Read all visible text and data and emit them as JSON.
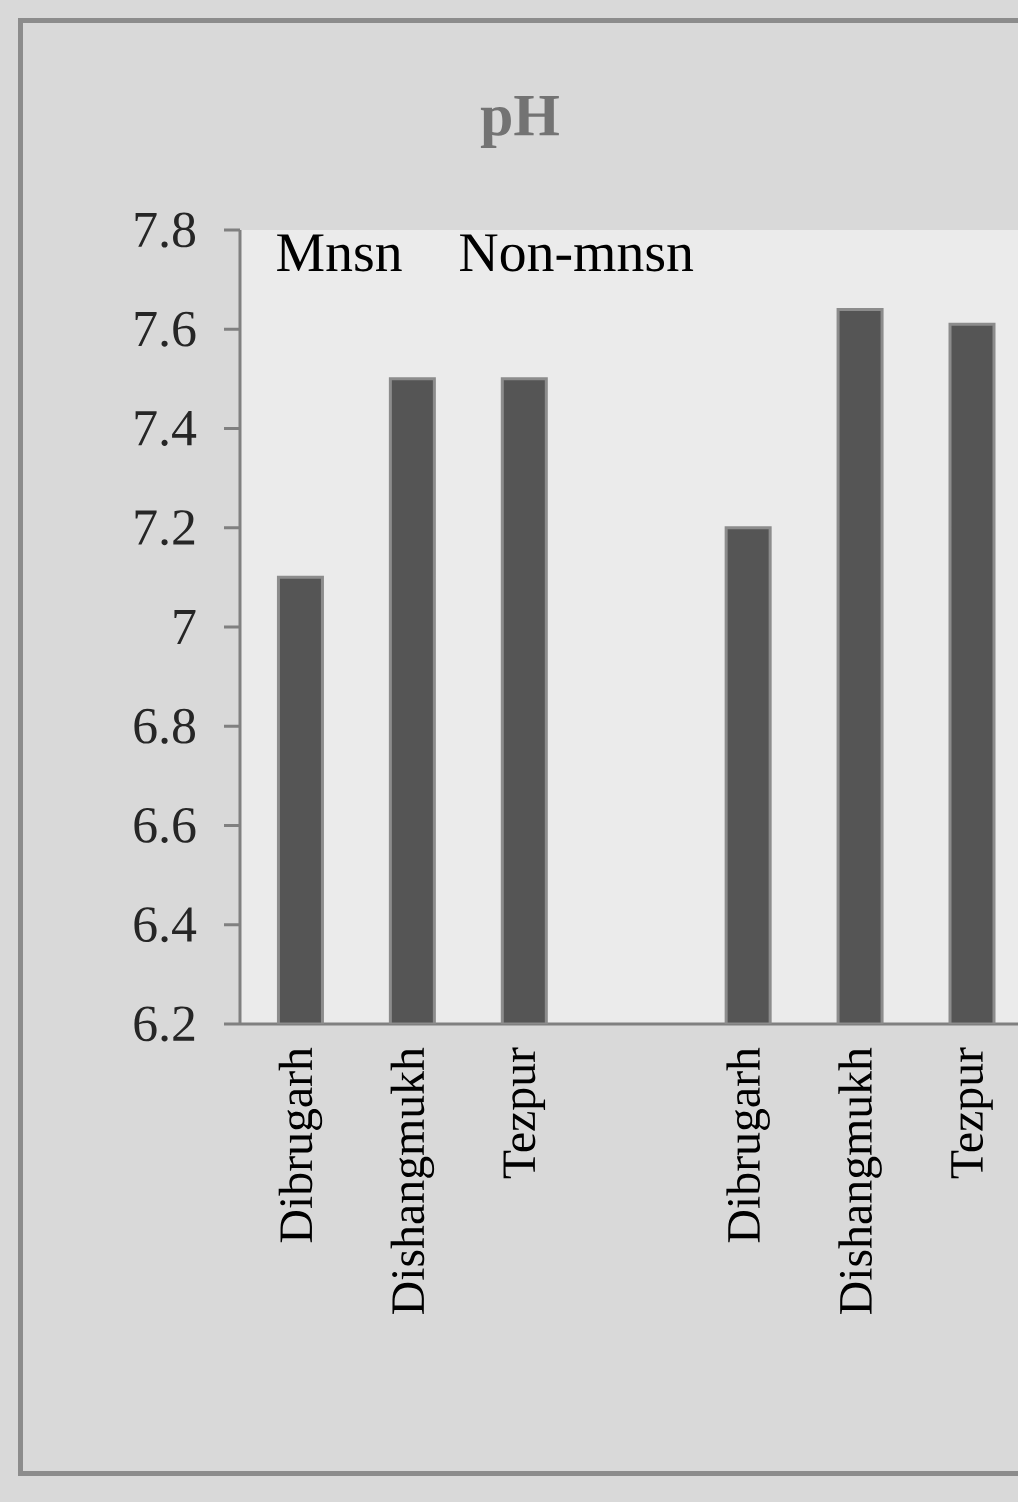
{
  "chart_data": {
    "type": "bar",
    "title": "pH",
    "categories": [
      "Dibrugarh",
      "Dishangmukh",
      "Tezpur",
      null,
      "Dibrugarh",
      "Dishangmukh",
      "Tezpur"
    ],
    "values": [
      7.1,
      7.5,
      7.5,
      null,
      7.2,
      7.64,
      7.61
    ],
    "color": "#555555",
    "ylim": [
      6.2,
      7.8
    ],
    "yticks": [
      6.2,
      6.4,
      6.6,
      6.8,
      7,
      7.2,
      7.4,
      7.6,
      7.8
    ],
    "annotations": [
      "Mnsn",
      "Non-mnsn"
    ],
    "grid": false
  }
}
